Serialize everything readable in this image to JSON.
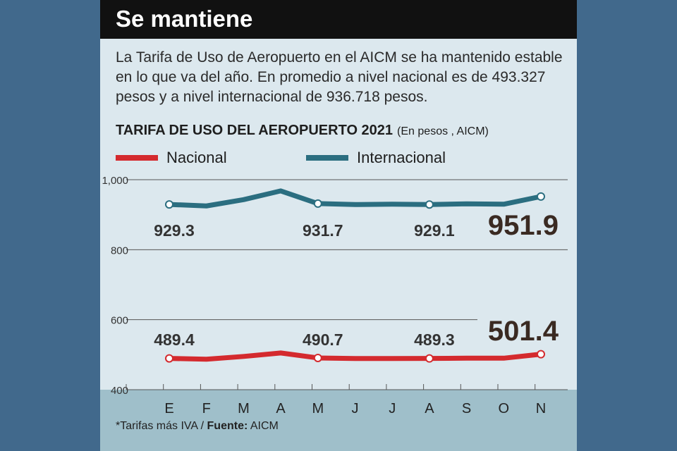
{
  "header": {
    "title": "Se mantiene"
  },
  "intro": "La Tarifa de Uso de Aeropuerto en el AICM se ha mantenido estable en lo que va del año. En promedio a nivel nacional es de 493.327 pesos y a nivel internacional de 936.718 pesos.",
  "footer": {
    "note": "*Tarifas más IVA / ",
    "source_label": "Fuente:",
    "source": " AICM"
  },
  "chart_data": {
    "type": "line",
    "title": "TARIFA DE USO DEL AEROPUERTO 2021",
    "subtitle": "(En pesos , AICM)",
    "categories": [
      "E",
      "F",
      "M",
      "A",
      "M",
      "J",
      "J",
      "A",
      "S",
      "O",
      "N"
    ],
    "ylim": [
      400,
      1000
    ],
    "yticks": [
      "1,000",
      "800",
      "600",
      "400"
    ],
    "ytick_values": [
      1000,
      800,
      600,
      400
    ],
    "series": [
      {
        "name": "Nacional",
        "color": "#d42a2e",
        "values": [
          489.4,
          487,
          495,
          505,
          490.7,
          489,
          489,
          489.3,
          490,
          490,
          501.4
        ],
        "labeled": [
          0,
          4,
          7,
          10
        ],
        "labels": [
          "489.4",
          "490.7",
          "489.3",
          "501.4"
        ]
      },
      {
        "name": "Internacional",
        "color": "#2b6e80",
        "values": [
          929.3,
          925,
          943,
          968,
          931.7,
          929,
          930,
          929.1,
          931,
          930,
          951.9
        ],
        "labeled": [
          0,
          4,
          7,
          10
        ],
        "labels": [
          "929.3",
          "931.7",
          "929.1",
          "951.9"
        ]
      }
    ]
  }
}
